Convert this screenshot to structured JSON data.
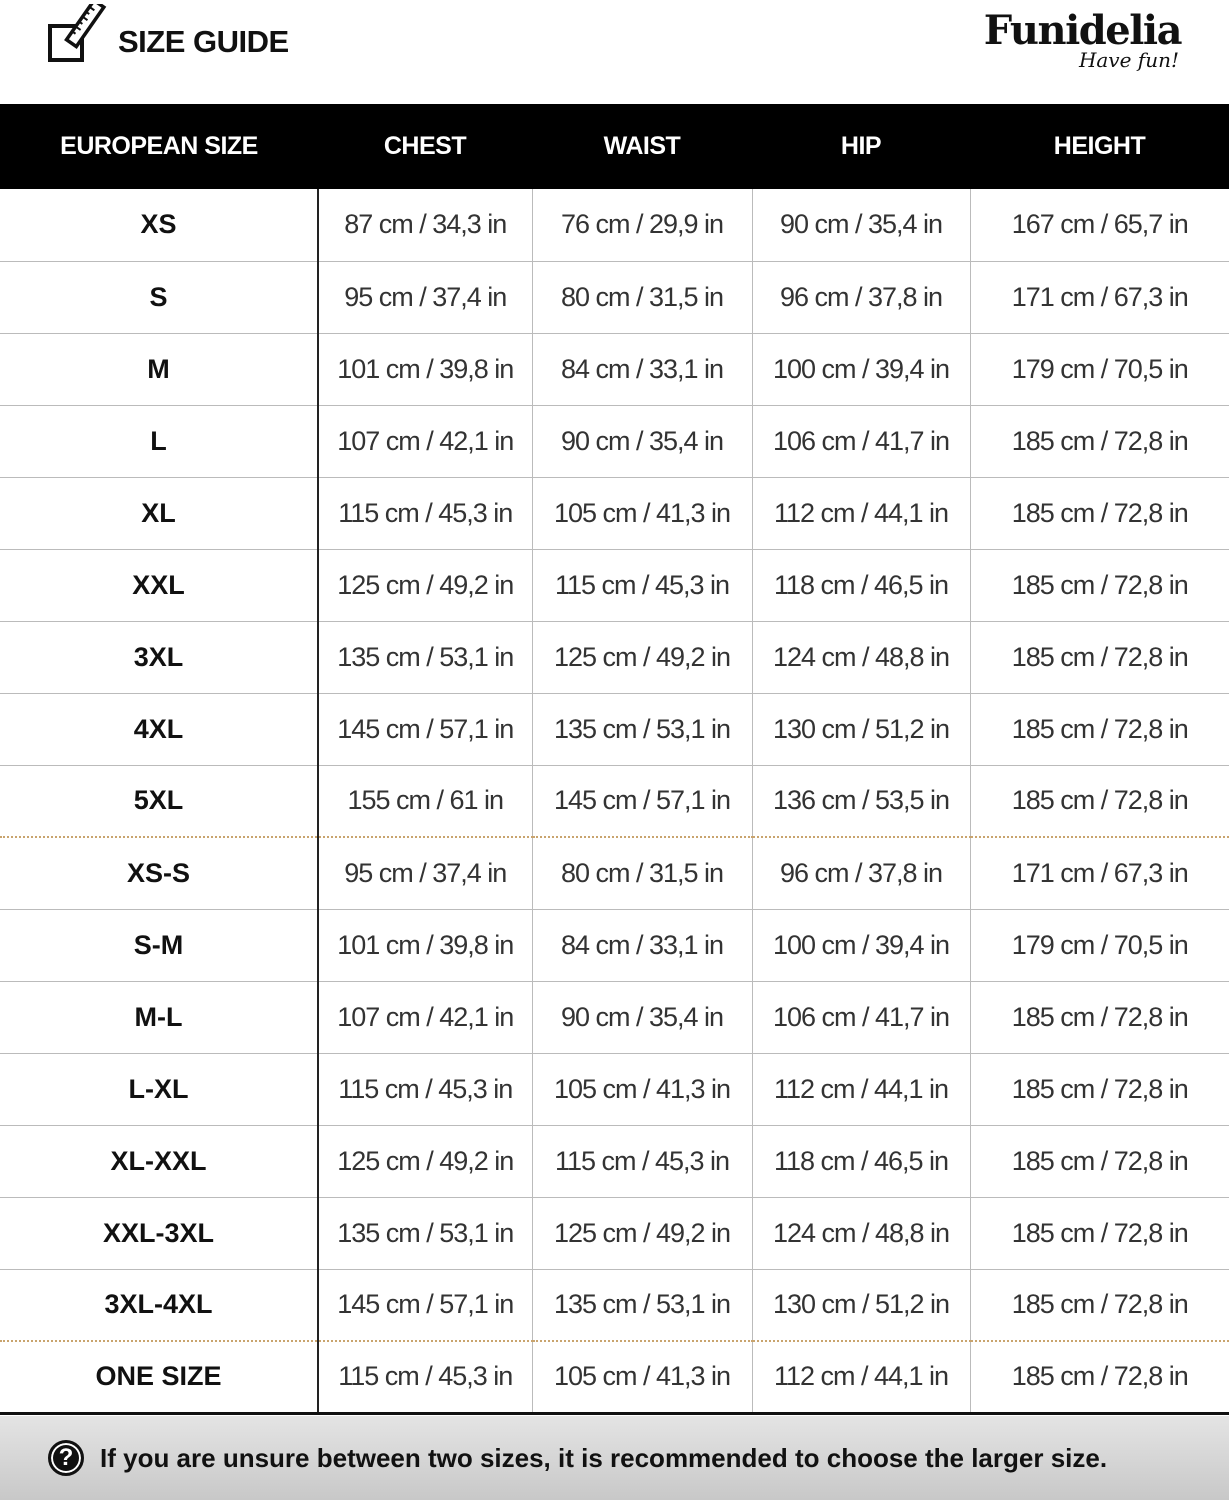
{
  "header": {
    "title": "SIZE GUIDE",
    "brand": "Funidelia",
    "tagline": "Have fun!"
  },
  "table": {
    "columns": [
      "EUROPEAN SIZE",
      "CHEST",
      "WAIST",
      "HIP",
      "HEIGHT"
    ],
    "rows": [
      [
        "XS",
        "87 cm / 34,3 in",
        "76 cm / 29,9 in",
        "90 cm / 35,4 in",
        "167 cm / 65,7 in"
      ],
      [
        "S",
        "95 cm / 37,4 in",
        "80 cm / 31,5 in",
        "96 cm / 37,8 in",
        "171 cm / 67,3 in"
      ],
      [
        "M",
        "101 cm / 39,8 in",
        "84 cm / 33,1 in",
        "100 cm / 39,4 in",
        "179 cm / 70,5 in"
      ],
      [
        "L",
        "107 cm / 42,1 in",
        "90 cm / 35,4 in",
        "106 cm / 41,7 in",
        "185 cm / 72,8 in"
      ],
      [
        "XL",
        "115 cm / 45,3 in",
        "105 cm / 41,3 in",
        "112 cm / 44,1 in",
        "185 cm / 72,8 in"
      ],
      [
        "XXL",
        "125 cm / 49,2 in",
        "115 cm / 45,3 in",
        "118 cm / 46,5 in",
        "185 cm / 72,8 in"
      ],
      [
        "3XL",
        "135 cm / 53,1 in",
        "125 cm / 49,2 in",
        "124 cm / 48,8 in",
        "185 cm / 72,8 in"
      ],
      [
        "4XL",
        "145 cm / 57,1 in",
        "135 cm / 53,1 in",
        "130 cm / 51,2 in",
        "185 cm / 72,8 in"
      ],
      [
        "5XL",
        "155 cm / 61 in",
        "145 cm / 57,1 in",
        "136 cm / 53,5 in",
        "185 cm / 72,8 in"
      ],
      [
        "XS-S",
        "95 cm / 37,4 in",
        "80 cm / 31,5 in",
        "96 cm / 37,8 in",
        "171 cm / 67,3 in"
      ],
      [
        "S-M",
        "101 cm / 39,8 in",
        "84 cm / 33,1 in",
        "100 cm / 39,4 in",
        "179 cm / 70,5 in"
      ],
      [
        "M-L",
        "107 cm / 42,1 in",
        "90 cm / 35,4 in",
        "106 cm / 41,7 in",
        "185 cm / 72,8 in"
      ],
      [
        "L-XL",
        "115 cm / 45,3 in",
        "105 cm / 41,3 in",
        "112 cm / 44,1 in",
        "185 cm / 72,8 in"
      ],
      [
        "XL-XXL",
        "125 cm / 49,2 in",
        "115 cm / 45,3 in",
        "118 cm / 46,5 in",
        "185 cm / 72,8 in"
      ],
      [
        "XXL-3XL",
        "135 cm / 53,1 in",
        "125 cm / 49,2 in",
        "124 cm / 48,8 in",
        "185 cm / 72,8 in"
      ],
      [
        "3XL-4XL",
        "145 cm / 57,1 in",
        "135 cm / 53,1 in",
        "130 cm / 51,2 in",
        "185 cm / 72,8 in"
      ],
      [
        "ONE SIZE",
        "115 cm / 45,3 in",
        "105 cm / 41,3 in",
        "112 cm / 44,1 in",
        "185 cm / 72,8 in"
      ]
    ]
  },
  "footer": {
    "icon": "question-circle-icon",
    "note": "If you are unsure between two sizes, it is recommended to choose the larger size."
  },
  "colors": {
    "header_bg": "#000000",
    "group_separator": "#c9a46e",
    "footer_bg": "#d6d6d6"
  }
}
